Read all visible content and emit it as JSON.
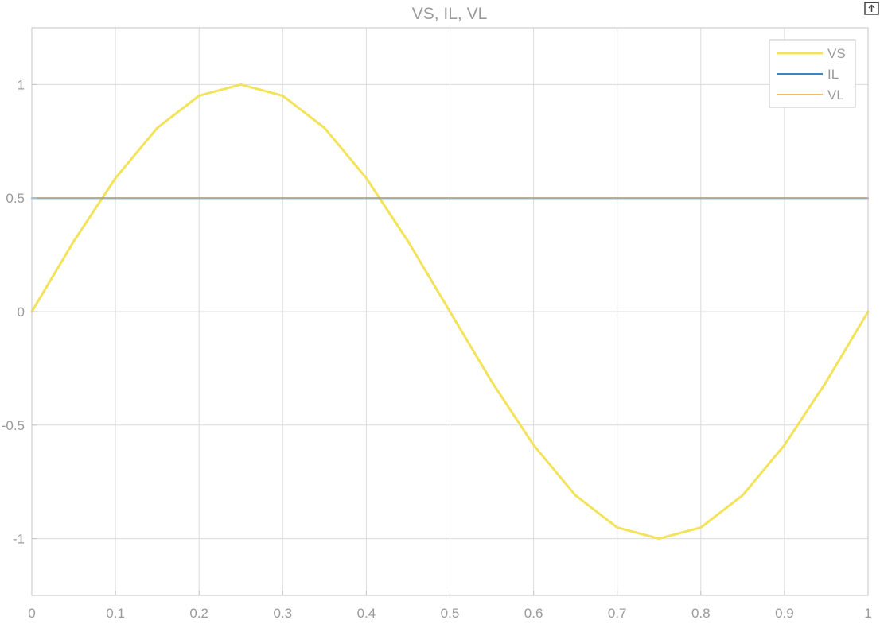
{
  "chart_data": {
    "type": "line",
    "title": "VS, IL, VL",
    "xlabel": "",
    "ylabel": "",
    "xlim": [
      0,
      1
    ],
    "ylim": [
      -1.25,
      1.25
    ],
    "grid": true,
    "legend_position": "top-right",
    "x_ticks": [
      0,
      0.1,
      0.2,
      0.3,
      0.4,
      0.5,
      0.6,
      0.7,
      0.8,
      0.9,
      1
    ],
    "x_tick_labels": [
      "0",
      "0.1",
      "0.2",
      "0.3",
      "0.4",
      "0.5",
      "0.6",
      "0.7",
      "0.8",
      "0.9",
      "1"
    ],
    "y_ticks": [
      -1,
      -0.5,
      0,
      0.5,
      1
    ],
    "y_tick_labels": [
      "-1",
      "-0.5",
      "0",
      "0.5",
      "1"
    ],
    "x": [
      0,
      0.05,
      0.1,
      0.15,
      0.2,
      0.25,
      0.3,
      0.35,
      0.4,
      0.45,
      0.5,
      0.55,
      0.6,
      0.65,
      0.7,
      0.75,
      0.8,
      0.85,
      0.9,
      0.95,
      1
    ],
    "series": [
      {
        "name": "VS",
        "color": "#f2e35a",
        "values": [
          0,
          0.309,
          0.588,
          0.809,
          0.951,
          1,
          0.951,
          0.809,
          0.588,
          0.309,
          0,
          -0.309,
          -0.588,
          -0.809,
          -0.951,
          -1,
          -0.951,
          -0.809,
          -0.588,
          -0.309,
          0
        ]
      },
      {
        "name": "IL",
        "color": "#3a86c8",
        "values": [
          0.5,
          0.5,
          0.5,
          0.5,
          0.5,
          0.5,
          0.5,
          0.5,
          0.5,
          0.5,
          0.5,
          0.5,
          0.5,
          0.5,
          0.5,
          0.5,
          0.5,
          0.5,
          0.5,
          0.5,
          0.5
        ]
      },
      {
        "name": "VL",
        "color": "#e8a93a",
        "values": [
          0.5,
          0.5,
          0.5,
          0.5,
          0.5,
          0.5,
          0.5,
          0.5,
          0.5,
          0.5,
          0.5,
          0.5,
          0.5,
          0.5,
          0.5,
          0.5,
          0.5,
          0.5,
          0.5,
          0.5,
          0.5
        ]
      }
    ]
  },
  "toolbar": {
    "export_icon": "export-icon"
  }
}
